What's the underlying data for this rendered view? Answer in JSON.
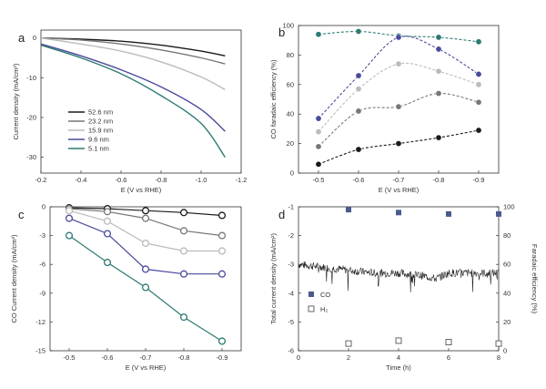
{
  "chart_data": [
    {
      "panel": "a",
      "type": "line",
      "xlabel": "E (V vs RHE)",
      "ylabel": "Current density (mA/cm²)",
      "xlim": [
        -0.2,
        -1.2
      ],
      "ylim": [
        -34,
        2
      ],
      "xticks": [
        -0.2,
        -0.4,
        -0.6,
        -0.8,
        -1.0,
        -1.2
      ],
      "xtick_labels": [
        "-0.2",
        "-0.4",
        "-0.6",
        "-0.8",
        "-1.0",
        "-1.2"
      ],
      "yticks": [
        0,
        -10,
        -20,
        -30
      ],
      "ytick_labels": [
        "0",
        "-10",
        "-20",
        "-30"
      ],
      "legend_position": "bottom-left",
      "series": [
        {
          "name": "52.6 nm",
          "color": "#1a1a1a",
          "x": [
            -0.2,
            -0.4,
            -0.6,
            -0.8,
            -1.0,
            -1.12
          ],
          "y": [
            0,
            -0.3,
            -0.8,
            -1.8,
            -3.3,
            -4.5
          ]
        },
        {
          "name": "23.2 nm",
          "color": "#777777",
          "x": [
            -0.2,
            -0.4,
            -0.6,
            -0.8,
            -1.0,
            -1.12
          ],
          "y": [
            0,
            -0.5,
            -1.5,
            -3.0,
            -5.0,
            -6.5
          ]
        },
        {
          "name": "15.9 nm",
          "color": "#bbbbbb",
          "x": [
            -0.2,
            -0.4,
            -0.6,
            -0.8,
            -1.0,
            -1.12
          ],
          "y": [
            0,
            -1.5,
            -3.3,
            -6.0,
            -9.8,
            -13.0
          ]
        },
        {
          "name": "9.6 nm",
          "color": "#4a4a9c",
          "x": [
            -0.2,
            -0.4,
            -0.6,
            -0.8,
            -1.0,
            -1.12
          ],
          "y": [
            -1.5,
            -4.5,
            -8.0,
            -12.3,
            -18.0,
            -23.5
          ]
        },
        {
          "name": "5.1 nm",
          "color": "#2d7a73",
          "x": [
            -0.2,
            -0.4,
            -0.6,
            -0.8,
            -1.0,
            -1.12
          ],
          "y": [
            -1.8,
            -5.0,
            -9.0,
            -14.5,
            -21.5,
            -30.0
          ]
        }
      ]
    },
    {
      "panel": "b",
      "type": "line",
      "xlabel": "E (V vs RHE)",
      "ylabel": "CO faradaic efficiency (%)",
      "x": [
        -0.5,
        -0.6,
        -0.7,
        -0.8,
        -0.9
      ],
      "xtick_labels": [
        "-0.5",
        "-0.6",
        "-0.7",
        "-0.8",
        "-0.9"
      ],
      "ylim": [
        0,
        100
      ],
      "yticks": [
        0,
        20,
        40,
        60,
        80,
        100
      ],
      "ytick_labels": [
        "0",
        "20",
        "40",
        "60",
        "80",
        "100"
      ],
      "series": [
        {
          "color": "#2d7a73",
          "values": [
            94,
            96,
            93,
            92,
            89
          ]
        },
        {
          "color": "#4a4a9c",
          "values": [
            37,
            66,
            92,
            84,
            67
          ]
        },
        {
          "color": "#bbbbbb",
          "values": [
            28,
            57,
            74,
            69,
            60
          ]
        },
        {
          "color": "#777777",
          "values": [
            18,
            42,
            45,
            54,
            48
          ]
        },
        {
          "color": "#1a1a1a",
          "values": [
            6,
            16,
            20,
            24,
            29
          ]
        }
      ]
    },
    {
      "panel": "c",
      "type": "line",
      "xlabel": "E (V vs RHE)",
      "ylabel": "CO Current density (mA/cm²)",
      "x": [
        -0.5,
        -0.6,
        -0.7,
        -0.8,
        -0.9
      ],
      "xtick_labels": [
        "-0.5",
        "-0.6",
        "-0.7",
        "-0.8",
        "-0.9"
      ],
      "ylim": [
        -15,
        0
      ],
      "yticks": [
        0,
        -3,
        -6,
        -9,
        -12,
        -15
      ],
      "ytick_labels": [
        "0",
        "-3",
        "-6",
        "-9",
        "-12",
        "-15"
      ],
      "series": [
        {
          "color": "#1a1a1a",
          "values": [
            -0.1,
            -0.2,
            -0.4,
            -0.6,
            -0.9
          ]
        },
        {
          "color": "#777777",
          "values": [
            -0.2,
            -0.5,
            -1.2,
            -2.5,
            -3.0
          ]
        },
        {
          "color": "#bbbbbb",
          "values": [
            -0.4,
            -1.5,
            -3.8,
            -4.6,
            -4.6
          ]
        },
        {
          "color": "#4a4a9c",
          "values": [
            -1.2,
            -2.8,
            -6.5,
            -7.0,
            -7.0
          ]
        },
        {
          "color": "#2d7a73",
          "values": [
            -3.0,
            -5.8,
            -8.4,
            -11.5,
            -14.0
          ]
        }
      ]
    },
    {
      "panel": "d",
      "type": "line",
      "xlabel": "Time (h)",
      "ylabel": "Total current density (mA/cm²)",
      "ylabel_right": "Faradaic efficiency (%)",
      "xlim": [
        0,
        8
      ],
      "xticks": [
        0,
        2,
        4,
        6,
        8
      ],
      "xtick_labels": [
        "0",
        "2",
        "4",
        "6",
        "8"
      ],
      "ylim": [
        -6,
        -1
      ],
      "yticks": [
        -1,
        -2,
        -3,
        -4,
        -5,
        -6
      ],
      "ytick_labels": [
        "-1",
        "-2",
        "-3",
        "-4",
        "-5",
        "-6"
      ],
      "ylim_right": [
        0,
        100
      ],
      "yticks_right": [
        0,
        20,
        40,
        60,
        80,
        100
      ],
      "ytick_labels_right": [
        "0",
        "20",
        "40",
        "60",
        "80",
        "100"
      ],
      "current_trace": {
        "color": "#222222",
        "x": [
          0,
          1,
          2,
          3,
          4,
          5,
          5.5,
          6,
          7,
          8
        ],
        "y": [
          -3.0,
          -3.1,
          -3.2,
          -3.3,
          -3.3,
          -3.4,
          -3.5,
          -3.3,
          -3.3,
          -3.3
        ]
      },
      "series": [
        {
          "name": "CO",
          "color": "#4a5a8c",
          "x": [
            2,
            4,
            6,
            8
          ],
          "values": [
            98,
            96,
            95,
            95
          ]
        },
        {
          "name": "H₂",
          "color": "#555555",
          "x": [
            2,
            4,
            6,
            8
          ],
          "values": [
            5,
            7,
            6,
            5
          ]
        }
      ]
    }
  ],
  "panel_labels": [
    "a",
    "b",
    "c",
    "d"
  ]
}
